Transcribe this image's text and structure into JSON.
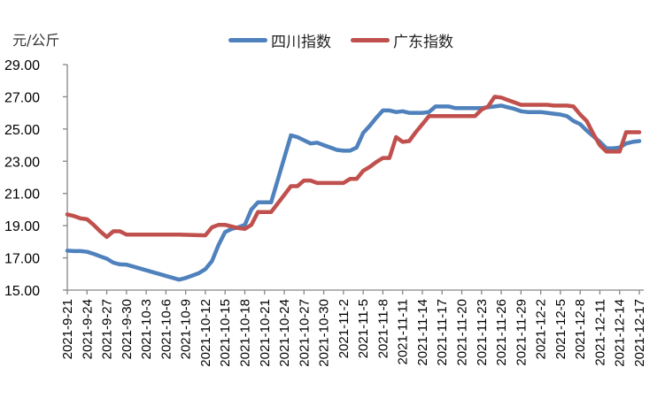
{
  "unit_label": "元/公斤",
  "legend": [
    {
      "name": "四川指数",
      "color": "#4F81BD"
    },
    {
      "name": "广东指数",
      "color": "#C0504D"
    }
  ],
  "chart_data": {
    "type": "line",
    "title": "",
    "xlabel": "",
    "ylabel": "元/公斤",
    "ylim": [
      15.0,
      29.0
    ],
    "yticks": [
      "15.00",
      "17.00",
      "19.00",
      "21.00",
      "23.00",
      "25.00",
      "27.00",
      "29.00"
    ],
    "grid": false,
    "legend_position": "top",
    "x_tick_labels": [
      "2021-9-21",
      "2021-9-24",
      "2021-9-27",
      "2021-9-30",
      "2021-10-3",
      "2021-10-6",
      "2021-10-9",
      "2021-10-12",
      "2021-10-15",
      "2021-10-18",
      "2021-10-21",
      "2021-10-24",
      "2021-10-27",
      "2021-10-30",
      "2021-11-2",
      "2021-11-5",
      "2021-11-8",
      "2021-11-11",
      "2021-11-14",
      "2021-11-17",
      "2021-11-20",
      "2021-11-23",
      "2021-11-26",
      "2021-11-29",
      "2021-12-2",
      "2021-12-5",
      "2021-12-8",
      "2021-12-11",
      "2021-12-14",
      "2021-12-17"
    ],
    "series": [
      {
        "name": "四川指数",
        "color": "#4F81BD",
        "points": [
          [
            "2021-9-21",
            17.45
          ],
          [
            "2021-9-22",
            17.42
          ],
          [
            "2021-9-23",
            17.42
          ],
          [
            "2021-9-24",
            17.38
          ],
          [
            "2021-9-25",
            17.25
          ],
          [
            "2021-9-26",
            17.1
          ],
          [
            "2021-9-27",
            16.95
          ],
          [
            "2021-9-28",
            16.7
          ],
          [
            "2021-9-29",
            16.6
          ],
          [
            "2021-9-30",
            16.58
          ],
          [
            "2021-10-8",
            15.65
          ],
          [
            "2021-10-9",
            15.75
          ],
          [
            "2021-10-10",
            15.9
          ],
          [
            "2021-10-11",
            16.05
          ],
          [
            "2021-10-12",
            16.3
          ],
          [
            "2021-10-13",
            16.8
          ],
          [
            "2021-10-14",
            17.8
          ],
          [
            "2021-10-15",
            18.6
          ],
          [
            "2021-10-16",
            18.8
          ],
          [
            "2021-10-17",
            18.9
          ],
          [
            "2021-10-18",
            19.05
          ],
          [
            "2021-10-19",
            20.0
          ],
          [
            "2021-10-20",
            20.45
          ],
          [
            "2021-10-21",
            20.45
          ],
          [
            "2021-10-22",
            20.45
          ],
          [
            "2021-10-25",
            24.6
          ],
          [
            "2021-10-26",
            24.5
          ],
          [
            "2021-10-27",
            24.3
          ],
          [
            "2021-10-28",
            24.1
          ],
          [
            "2021-10-29",
            24.15
          ],
          [
            "2021-10-30",
            24.0
          ],
          [
            "2021-10-31",
            23.85
          ],
          [
            "2021-11-1",
            23.7
          ],
          [
            "2021-11-2",
            23.65
          ],
          [
            "2021-11-3",
            23.65
          ],
          [
            "2021-11-4",
            23.85
          ],
          [
            "2021-11-5",
            24.75
          ],
          [
            "2021-11-6",
            25.2
          ],
          [
            "2021-11-7",
            25.7
          ],
          [
            "2021-11-8",
            26.15
          ],
          [
            "2021-11-9",
            26.15
          ],
          [
            "2021-11-10",
            26.05
          ],
          [
            "2021-11-11",
            26.1
          ],
          [
            "2021-11-12",
            26.0
          ],
          [
            "2021-11-13",
            26.0
          ],
          [
            "2021-11-14",
            26.0
          ],
          [
            "2021-11-15",
            26.05
          ],
          [
            "2021-11-16",
            26.4
          ],
          [
            "2021-11-17",
            26.4
          ],
          [
            "2021-11-18",
            26.4
          ],
          [
            "2021-11-19",
            26.3
          ],
          [
            "2021-11-20",
            26.3
          ],
          [
            "2021-11-21",
            26.3
          ],
          [
            "2021-11-22",
            26.3
          ],
          [
            "2021-11-23",
            26.3
          ],
          [
            "2021-11-24",
            26.35
          ],
          [
            "2021-11-25",
            26.4
          ],
          [
            "2021-11-26",
            26.45
          ],
          [
            "2021-11-27",
            26.35
          ],
          [
            "2021-11-28",
            26.25
          ],
          [
            "2021-11-29",
            26.1
          ],
          [
            "2021-11-30",
            26.05
          ],
          [
            "2021-12-1",
            26.05
          ],
          [
            "2021-12-2",
            26.05
          ],
          [
            "2021-12-3",
            26.0
          ],
          [
            "2021-12-4",
            25.95
          ],
          [
            "2021-12-5",
            25.9
          ],
          [
            "2021-12-6",
            25.8
          ],
          [
            "2021-12-7",
            25.5
          ],
          [
            "2021-12-8",
            25.3
          ],
          [
            "2021-12-9",
            24.9
          ],
          [
            "2021-12-10",
            24.55
          ],
          [
            "2021-12-11",
            24.2
          ],
          [
            "2021-12-12",
            23.8
          ],
          [
            "2021-12-13",
            23.8
          ],
          [
            "2021-12-14",
            23.85
          ],
          [
            "2021-12-15",
            24.1
          ],
          [
            "2021-12-16",
            24.2
          ],
          [
            "2021-12-17",
            24.25
          ]
        ]
      },
      {
        "name": "广东指数",
        "color": "#C0504D",
        "points": [
          [
            "2021-9-21",
            19.7
          ],
          [
            "2021-9-22",
            19.6
          ],
          [
            "2021-9-23",
            19.45
          ],
          [
            "2021-9-24",
            19.4
          ],
          [
            "2021-9-25",
            19.05
          ],
          [
            "2021-9-26",
            18.65
          ],
          [
            "2021-9-27",
            18.3
          ],
          [
            "2021-9-28",
            18.65
          ],
          [
            "2021-9-29",
            18.65
          ],
          [
            "2021-9-30",
            18.45
          ],
          [
            "2021-10-1",
            18.45
          ],
          [
            "2021-10-8",
            18.45
          ],
          [
            "2021-10-12",
            18.4
          ],
          [
            "2021-10-13",
            18.9
          ],
          [
            "2021-10-14",
            19.05
          ],
          [
            "2021-10-15",
            19.05
          ],
          [
            "2021-10-16",
            18.95
          ],
          [
            "2021-10-17",
            18.85
          ],
          [
            "2021-10-18",
            18.8
          ],
          [
            "2021-10-19",
            19.05
          ],
          [
            "2021-10-20",
            19.85
          ],
          [
            "2021-10-21",
            19.85
          ],
          [
            "2021-10-22",
            19.85
          ],
          [
            "2021-10-24",
            20.9
          ],
          [
            "2021-10-25",
            21.45
          ],
          [
            "2021-10-26",
            21.45
          ],
          [
            "2021-10-27",
            21.8
          ],
          [
            "2021-10-28",
            21.8
          ],
          [
            "2021-10-29",
            21.65
          ],
          [
            "2021-10-30",
            21.65
          ],
          [
            "2021-10-31",
            21.65
          ],
          [
            "2021-11-1",
            21.65
          ],
          [
            "2021-11-2",
            21.65
          ],
          [
            "2021-11-3",
            21.9
          ],
          [
            "2021-11-4",
            21.9
          ],
          [
            "2021-11-5",
            22.4
          ],
          [
            "2021-11-6",
            22.65
          ],
          [
            "2021-11-7",
            22.95
          ],
          [
            "2021-11-8",
            23.2
          ],
          [
            "2021-11-9",
            23.2
          ],
          [
            "2021-11-10",
            24.5
          ],
          [
            "2021-11-11",
            24.2
          ],
          [
            "2021-11-12",
            24.25
          ],
          [
            "2021-11-13",
            24.8
          ],
          [
            "2021-11-14",
            25.3
          ],
          [
            "2021-11-15",
            25.8
          ],
          [
            "2021-11-16",
            25.8
          ],
          [
            "2021-11-17",
            25.8
          ],
          [
            "2021-11-18",
            25.8
          ],
          [
            "2021-11-19",
            25.8
          ],
          [
            "2021-11-20",
            25.8
          ],
          [
            "2021-11-21",
            25.8
          ],
          [
            "2021-11-22",
            25.8
          ],
          [
            "2021-11-23",
            26.2
          ],
          [
            "2021-11-24",
            26.4
          ],
          [
            "2021-11-25",
            27.0
          ],
          [
            "2021-11-26",
            26.95
          ],
          [
            "2021-11-27",
            26.8
          ],
          [
            "2021-11-28",
            26.65
          ],
          [
            "2021-11-29",
            26.5
          ],
          [
            "2021-11-30",
            26.5
          ],
          [
            "2021-12-1",
            26.5
          ],
          [
            "2021-12-2",
            26.5
          ],
          [
            "2021-12-3",
            26.5
          ],
          [
            "2021-12-4",
            26.45
          ],
          [
            "2021-12-5",
            26.45
          ],
          [
            "2021-12-6",
            26.45
          ],
          [
            "2021-12-7",
            26.4
          ],
          [
            "2021-12-8",
            25.9
          ],
          [
            "2021-12-9",
            25.5
          ],
          [
            "2021-12-10",
            24.7
          ],
          [
            "2021-12-11",
            24.0
          ],
          [
            "2021-12-12",
            23.6
          ],
          [
            "2021-12-13",
            23.6
          ],
          [
            "2021-12-14",
            23.6
          ],
          [
            "2021-12-15",
            24.8
          ],
          [
            "2021-12-16",
            24.8
          ],
          [
            "2021-12-17",
            24.8
          ]
        ]
      }
    ]
  }
}
